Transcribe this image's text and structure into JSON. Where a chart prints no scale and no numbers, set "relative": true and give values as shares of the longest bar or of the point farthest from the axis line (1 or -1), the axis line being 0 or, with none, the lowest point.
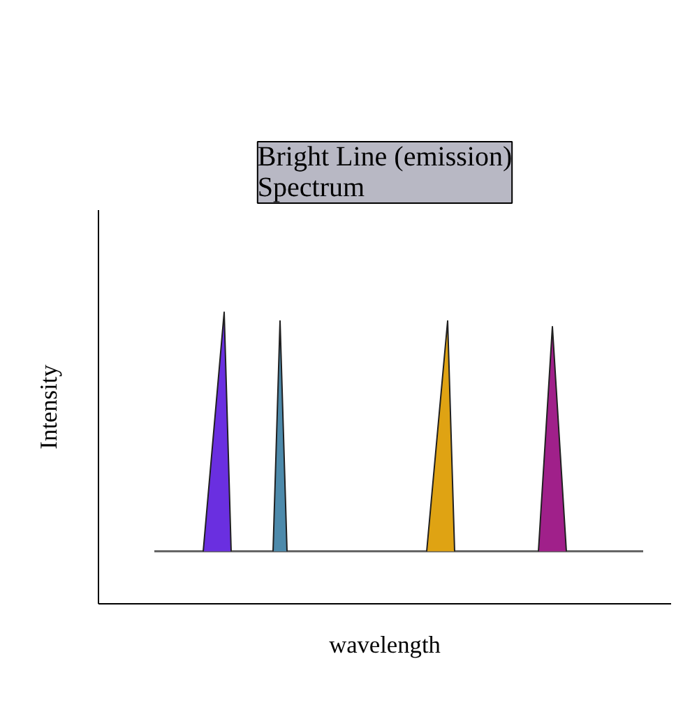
{
  "chart_data": {
    "type": "line",
    "title": "Bright Line (emission)\nSpectrum",
    "xlabel": "wavelength",
    "ylabel": "Intensity",
    "relative": true,
    "tick_labels": false,
    "grid": false,
    "categories": [
      null,
      null,
      null,
      null,
      null,
      null,
      null,
      null,
      null,
      null,
      null,
      null,
      null,
      null,
      null,
      null,
      null,
      null,
      null,
      null,
      null,
      null,
      null,
      null,
      null,
      null,
      null,
      null,
      null,
      null,
      null,
      null,
      null,
      null,
      null,
      null,
      null,
      null,
      null,
      null,
      null,
      null,
      null,
      null,
      null,
      null,
      null,
      null,
      null,
      null,
      null,
      null,
      null,
      null,
      null,
      null,
      null,
      null,
      null,
      null,
      null,
      null,
      null,
      null,
      null,
      null,
      null,
      null,
      null,
      null,
      null,
      null,
      null,
      null,
      null,
      null,
      null,
      null,
      null,
      null,
      null,
      null
    ],
    "series": [
      {
        "color": "#606060",
        "values": [
          null,
          null,
          null,
          null,
          null,
          null,
          null,
          null,
          0.18,
          0.18,
          0.18,
          0.18,
          0.18,
          0.18,
          0.18,
          0.18,
          0.18,
          0.18,
          0.18,
          0.18,
          0.18,
          0.18,
          0.18,
          0.18,
          0.18,
          0.18,
          0.18,
          0.18,
          0.18,
          0.18,
          0.18,
          0.18,
          0.18,
          0.18,
          0.18,
          0.18,
          0.18,
          0.18,
          0.18,
          0.18,
          0.18,
          0.18,
          0.18,
          0.18,
          0.18,
          0.18,
          0.18,
          0.18,
          0.18,
          0.18,
          0.18,
          0.18,
          0.18,
          0.18,
          0.18,
          0.18,
          0.18,
          0.18,
          0.18,
          0.18,
          0.18,
          0.18,
          0.18,
          0.18,
          0.18,
          0.18,
          0.18,
          0.18,
          0.18,
          0.18,
          0.18,
          0.18,
          0.18,
          0.18,
          0.18,
          0.18,
          0.18,
          0.18,
          0.18,
          null,
          null,
          null
        ]
      },
      {
        "type": "area",
        "color": "#6a2fe0",
        "values": [
          null,
          null,
          null,
          null,
          null,
          null,
          null,
          null,
          null,
          null,
          null,
          null,
          null,
          null,
          null,
          0.18,
          null,
          null,
          1.0,
          0.18,
          null,
          null,
          null,
          null,
          null,
          null,
          null,
          null,
          null,
          null,
          null,
          null,
          null,
          null,
          null,
          null,
          null,
          null,
          null,
          null,
          null,
          null,
          null,
          null,
          null,
          null,
          null,
          null,
          null,
          null,
          null,
          null,
          null,
          null,
          null,
          null,
          null,
          null,
          null,
          null,
          null,
          null,
          null,
          null,
          null,
          null,
          null,
          null,
          null,
          null,
          null,
          null,
          null,
          null,
          null,
          null,
          null,
          null,
          null,
          null,
          null,
          null
        ]
      },
      {
        "type": "area",
        "color": "#4d8aab",
        "values": [
          null,
          null,
          null,
          null,
          null,
          null,
          null,
          null,
          null,
          null,
          null,
          null,
          null,
          null,
          null,
          null,
          null,
          null,
          null,
          null,
          null,
          null,
          null,
          null,
          null,
          0.18,
          0.97,
          0.18,
          null,
          null,
          null,
          null,
          null,
          null,
          null,
          null,
          null,
          null,
          null,
          null,
          null,
          null,
          null,
          null,
          null,
          null,
          null,
          null,
          null,
          null,
          null,
          null,
          null,
          null,
          null,
          null,
          null,
          null,
          null,
          null,
          null,
          null,
          null,
          null,
          null,
          null,
          null,
          null,
          null,
          null,
          null,
          null,
          null,
          null,
          null,
          null,
          null,
          null,
          null,
          null,
          null,
          null
        ]
      },
      {
        "type": "area",
        "color": "#dfa313",
        "values": [
          null,
          null,
          null,
          null,
          null,
          null,
          null,
          null,
          null,
          null,
          null,
          null,
          null,
          null,
          null,
          null,
          null,
          null,
          null,
          null,
          null,
          null,
          null,
          null,
          null,
          null,
          null,
          null,
          null,
          null,
          null,
          null,
          null,
          null,
          null,
          null,
          null,
          null,
          null,
          null,
          null,
          null,
          null,
          null,
          null,
          null,
          null,
          0.18,
          null,
          null,
          0.97,
          0.18,
          null,
          null,
          null,
          null,
          null,
          null,
          null,
          null,
          null,
          null,
          null,
          null,
          null,
          null,
          null,
          null,
          null,
          null,
          null,
          null,
          null,
          null,
          null,
          null,
          null,
          null,
          null,
          null,
          null,
          null
        ]
      },
      {
        "type": "area",
        "color": "#a0208a",
        "values": [
          null,
          null,
          null,
          null,
          null,
          null,
          null,
          null,
          null,
          null,
          null,
          null,
          null,
          null,
          null,
          null,
          null,
          null,
          null,
          null,
          null,
          null,
          null,
          null,
          null,
          null,
          null,
          null,
          null,
          null,
          null,
          null,
          null,
          null,
          null,
          null,
          null,
          null,
          null,
          null,
          null,
          null,
          null,
          null,
          null,
          null,
          null,
          null,
          null,
          null,
          null,
          null,
          null,
          null,
          null,
          null,
          null,
          null,
          null,
          null,
          null,
          null,
          null,
          0.18,
          null,
          0.95,
          null,
          0.18,
          null,
          null,
          null,
          null,
          null,
          null,
          null,
          null,
          null,
          null,
          null,
          null,
          null,
          null
        ]
      }
    ]
  }
}
